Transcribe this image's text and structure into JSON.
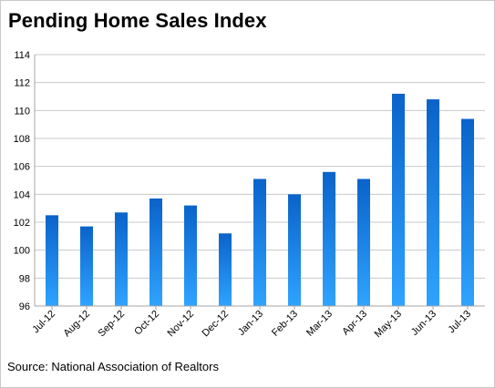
{
  "chart_data": {
    "type": "bar",
    "title": "Pending Home Sales Index",
    "source": "Source: National Association of Realtors",
    "categories": [
      "Jul-12",
      "Aug-12",
      "Sep-12",
      "Oct-12",
      "Nov-12",
      "Dec-12",
      "Jan-13",
      "Feb-13",
      "Mar-13",
      "Apr-13",
      "May-13",
      "Jun-13",
      "Jul-13"
    ],
    "values": [
      102.5,
      101.7,
      102.7,
      103.7,
      103.2,
      101.2,
      105.1,
      104.0,
      105.6,
      105.1,
      111.2,
      110.8,
      109.4
    ],
    "ylim": [
      96,
      114
    ],
    "yticks": [
      96,
      98,
      100,
      102,
      104,
      106,
      108,
      110,
      112,
      114
    ],
    "xlabel": "",
    "ylabel": "",
    "grid": true,
    "legend": "none",
    "colors": {
      "bar_dark": "#0a63c9",
      "bar_light": "#2fa3ff",
      "grid": "#c8c8c8",
      "axis": "#a6a6a6"
    }
  }
}
